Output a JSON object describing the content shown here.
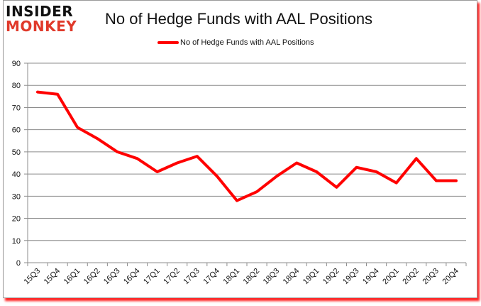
{
  "logo": {
    "line1": "INSIDER",
    "line2": "MONKEY"
  },
  "header": {
    "title": "No of Hedge Funds with AAL Positions"
  },
  "legend": {
    "label": "No of Hedge Funds with AAL Positions",
    "color": "#ff0000"
  },
  "chart_data": {
    "type": "line",
    "title": "No of Hedge Funds with AAL Positions",
    "xlabel": "",
    "ylabel": "",
    "ylim": [
      0,
      90
    ],
    "yticks": [
      0,
      10,
      20,
      30,
      40,
      50,
      60,
      70,
      80,
      90
    ],
    "grid": true,
    "legend_position": "top",
    "categories": [
      "15Q3",
      "15Q4",
      "16Q1",
      "16Q2",
      "16Q3",
      "16Q4",
      "17Q1",
      "17Q2",
      "17Q3",
      "17Q4",
      "18Q1",
      "18Q2",
      "18Q3",
      "18Q4",
      "19Q1",
      "19Q2",
      "19Q3",
      "19Q4",
      "20Q1",
      "20Q2",
      "20Q3",
      "20Q4"
    ],
    "series": [
      {
        "name": "No of Hedge Funds with AAL Positions",
        "color": "#ff0000",
        "values": [
          77,
          76,
          61,
          56,
          50,
          47,
          41,
          45,
          48,
          39,
          28,
          32,
          39,
          45,
          41,
          34,
          43,
          41,
          36,
          47,
          37,
          37
        ]
      }
    ]
  }
}
